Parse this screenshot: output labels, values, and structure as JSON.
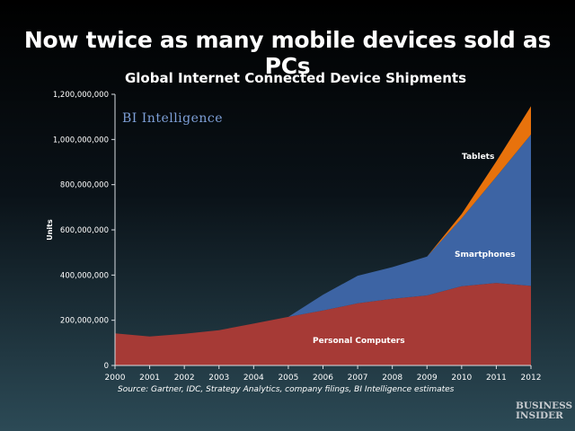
{
  "slide": {
    "title": "Now twice as many mobile devices sold as PCs",
    "source": "Source: Gartner, IDC, Strategy Analytics, company filings, BI Intelligence estimates",
    "brand_line1": "BUSINESS",
    "brand_line2": "INSIDER"
  },
  "chart_data": {
    "type": "area",
    "stacked": true,
    "title": "Global Internet Connected Device Shipments",
    "ylabel": "Units",
    "xlabel": "",
    "watermark": "BI Intelligence",
    "x": [
      2000,
      2001,
      2002,
      2003,
      2004,
      2005,
      2006,
      2007,
      2008,
      2009,
      2010,
      2011,
      2012
    ],
    "ylim": [
      0,
      1200000000
    ],
    "yticks": [
      0,
      200000000,
      400000000,
      600000000,
      800000000,
      1000000000,
      1200000000
    ],
    "ytick_labels": [
      "0",
      "200,000,000",
      "400,000,000",
      "600,000,000",
      "800,000,000",
      "1,000,000,000",
      "1,200,000,000"
    ],
    "grid": false,
    "series": [
      {
        "name": "Personal Computers",
        "color": "#a63a36",
        "values": [
          142000000,
          128000000,
          140000000,
          156000000,
          185000000,
          215000000,
          243000000,
          275000000,
          295000000,
          310000000,
          351000000,
          365000000,
          352000000
        ]
      },
      {
        "name": "Smartphones",
        "color": "#3d64a4",
        "values": [
          0,
          0,
          0,
          0,
          0,
          0,
          70000000,
          122000000,
          140000000,
          172000000,
          300000000,
          470000000,
          670000000
        ]
      },
      {
        "name": "Tablets",
        "color": "#e8720c",
        "values": [
          0,
          0,
          0,
          0,
          0,
          0,
          0,
          0,
          0,
          0,
          19000000,
          68000000,
          125000000
        ]
      }
    ]
  }
}
